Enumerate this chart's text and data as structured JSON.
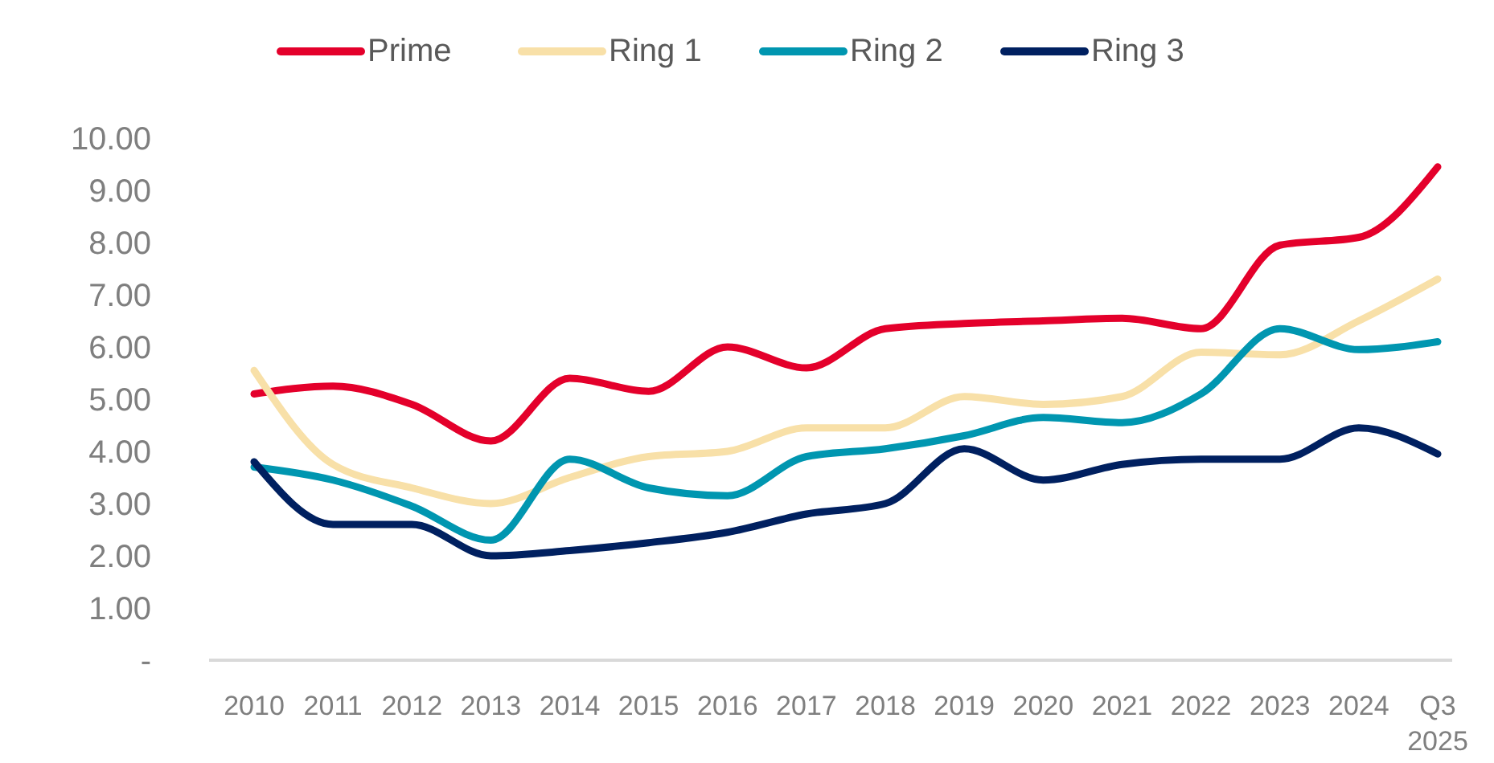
{
  "chart_data": {
    "type": "line",
    "categories": [
      "2010",
      "2011",
      "2012",
      "2013",
      "2014",
      "2015",
      "2016",
      "2017",
      "2018",
      "2019",
      "2020",
      "2021",
      "2022",
      "2023",
      "2024",
      "Q3\n2025"
    ],
    "series": [
      {
        "name": "Prime",
        "color": "#e4002b",
        "values": [
          5.1,
          5.25,
          4.9,
          4.2,
          5.4,
          5.15,
          6.0,
          5.6,
          6.35,
          6.45,
          6.5,
          6.55,
          6.35,
          7.95,
          8.1,
          9.45
        ]
      },
      {
        "name": "Ring 1",
        "color": "#f8e0a8",
        "values": [
          5.55,
          3.75,
          3.3,
          3.0,
          3.5,
          3.9,
          4.0,
          4.45,
          4.45,
          5.05,
          4.9,
          5.05,
          5.9,
          5.85,
          6.5,
          7.3
        ]
      },
      {
        "name": "Ring 2",
        "color": "#0096b0",
        "values": [
          3.7,
          3.45,
          2.95,
          2.3,
          3.85,
          3.3,
          3.15,
          3.9,
          4.05,
          4.3,
          4.65,
          4.55,
          5.1,
          6.35,
          5.95,
          6.1
        ]
      },
      {
        "name": "Ring 3",
        "color": "#002060",
        "values": [
          3.8,
          2.6,
          2.6,
          2.0,
          2.1,
          2.25,
          2.45,
          2.8,
          3.0,
          4.05,
          3.45,
          3.75,
          3.85,
          3.85,
          4.45,
          3.95
        ]
      }
    ],
    "ylim": [
      0,
      10
    ],
    "yticks": [
      {
        "value": 0,
        "label": "-"
      },
      {
        "value": 1,
        "label": "1.00"
      },
      {
        "value": 2,
        "label": "2.00"
      },
      {
        "value": 3,
        "label": "3.00"
      },
      {
        "value": 4,
        "label": "4.00"
      },
      {
        "value": 5,
        "label": "5.00"
      },
      {
        "value": 6,
        "label": "6.00"
      },
      {
        "value": 7,
        "label": "7.00"
      },
      {
        "value": 8,
        "label": "8.00"
      },
      {
        "value": 9,
        "label": "9.00"
      },
      {
        "value": 10,
        "label": "10.00"
      }
    ],
    "grid": false,
    "legend": "top",
    "marker": "none",
    "line_style": "solid"
  }
}
